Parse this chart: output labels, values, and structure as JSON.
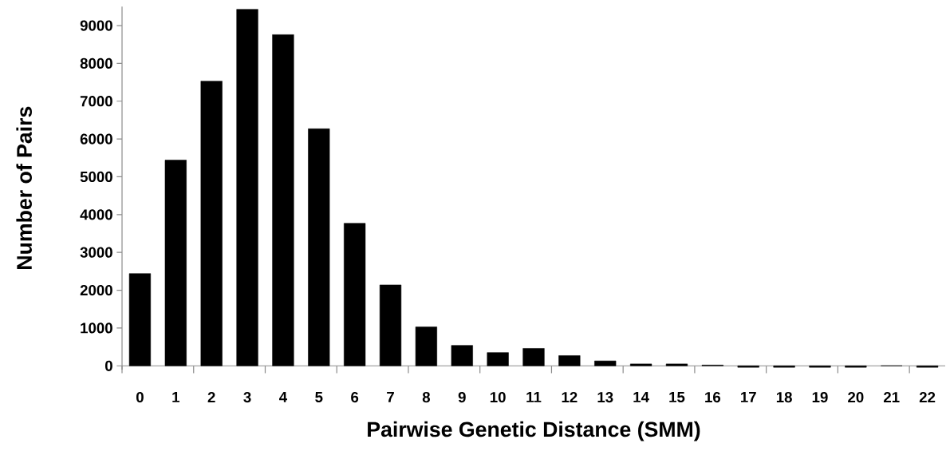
{
  "chart_data": {
    "type": "bar",
    "xlabel": "Pairwise Genetic Distance (SMM)",
    "ylabel": "Number of Pairs",
    "categories": [
      "0",
      "1",
      "2",
      "3",
      "4",
      "5",
      "6",
      "7",
      "8",
      "9",
      "10",
      "11",
      "12",
      "13",
      "14",
      "15",
      "16",
      "17",
      "18",
      "19",
      "20",
      "21",
      "22"
    ],
    "values": [
      2440,
      5440,
      7530,
      9430,
      8760,
      6270,
      3770,
      2140,
      1030,
      540,
      350,
      460,
      270,
      130,
      50,
      50,
      20,
      -40,
      -40,
      -40,
      -40,
      0,
      -40
    ],
    "color": "#000000",
    "ylim": [
      -100,
      9500
    ],
    "yticks": [
      0,
      1000,
      2000,
      3000,
      4000,
      5000,
      6000,
      7000,
      8000,
      9000
    ],
    "grid": false
  }
}
